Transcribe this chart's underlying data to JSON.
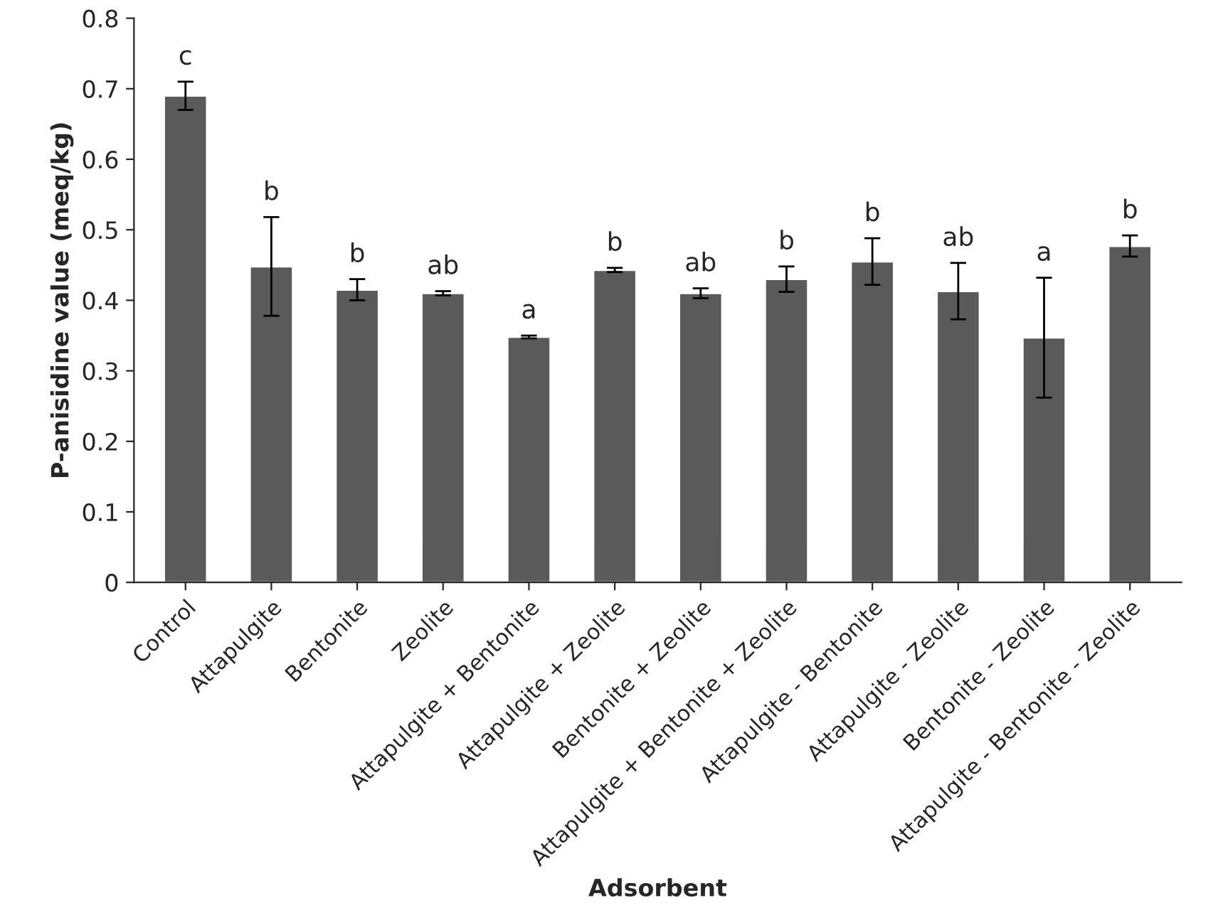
{
  "chart_data": {
    "type": "bar",
    "xlabel": "Adsorbent",
    "ylabel": "P-anisidine value (meq/kg)",
    "categories": [
      "Control",
      "Attapulgite",
      "Bentonite",
      "Zeolite",
      "Attapulgite + Bentonite",
      "Attapulgite + Zeolite",
      "Bentonite + Zeolite",
      "Attapulgite + Bentonite + Zeolite",
      "Attapulgite - Bentonite",
      "Attapulgite - Zeolite",
      "Bentonite - Zeolite",
      "Attapulgite - Bentonite - Zeolite"
    ],
    "values": [
      0.69,
      0.448,
      0.415,
      0.41,
      0.348,
      0.443,
      0.41,
      0.43,
      0.455,
      0.413,
      0.347,
      0.477
    ],
    "errors": [
      0.02,
      0.07,
      0.015,
      0.003,
      0.002,
      0.003,
      0.007,
      0.018,
      0.033,
      0.04,
      0.085,
      0.015
    ],
    "color": "#5a5a5a",
    "ylim": [
      0,
      0.8
    ],
    "yticks": [
      {
        "value": 0,
        "label": "0"
      },
      0.1,
      0.2,
      0.3,
      0.4,
      0.5,
      0.6,
      0.7,
      0.8
    ],
    "grid": false,
    "legend": false,
    "annotations": [
      "c",
      "b",
      "b",
      "ab",
      "a",
      "b",
      "ab",
      "b",
      "b",
      "ab",
      "a",
      "b"
    ]
  }
}
